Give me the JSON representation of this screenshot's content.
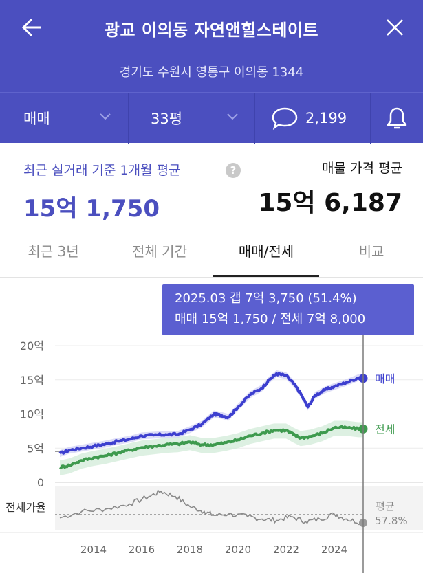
{
  "header": {
    "title": "광교 이의동 자연앤힐스테이트",
    "address": "경기도 수원시 영통구 이의동 1344",
    "colors": {
      "background": "#4b4fbf",
      "divider": "#3f43ad"
    }
  },
  "filters": {
    "deal_type": "매매",
    "size": "33평",
    "comment_count": "2,199",
    "icons": [
      "back-arrow-icon",
      "close-icon",
      "chevron-down-icon",
      "chat-bubble-icon",
      "bell-icon"
    ]
  },
  "summary": {
    "recent_label": "최근 실거래 기준 1개월 평균",
    "recent_value": "15억 1,750",
    "listing_label": "매물 가격 평균",
    "listing_value": "15억 6,187",
    "help": "?"
  },
  "tabs": [
    {
      "label": "최근 3년"
    },
    {
      "label": "전체 기간"
    },
    {
      "label": "매매/전세",
      "active": true
    },
    {
      "label": "비교"
    }
  ],
  "tooltip": {
    "line1": "2025.03  갭 7억 3,750 (51.4%)",
    "line2": "매매 15억 1,750 / 전세 7억 8,000"
  },
  "chart_data": [
    {
      "type": "line",
      "y_axis_ticks": [
        "20억",
        "15억",
        "10억",
        "5억",
        "0"
      ],
      "ylim": [
        0,
        20
      ],
      "y_unit": "억",
      "x_ticks": [
        "2014",
        "2016",
        "2018",
        "2020",
        "2022",
        "2024"
      ],
      "grid": true,
      "legend_placement": "right-end",
      "series": [
        {
          "name": "매매",
          "color": "#3d3fcf",
          "x": [
            2012.6,
            2013,
            2013.5,
            2014,
            2014.5,
            2015,
            2015.5,
            2016,
            2016.5,
            2017,
            2017.5,
            2018,
            2018.5,
            2019,
            2019.3,
            2019.6,
            2020,
            2020.5,
            2021,
            2021.3,
            2021.6,
            2022,
            2022.3,
            2022.6,
            2022.9,
            2023.2,
            2023.6,
            2024,
            2024.5,
            2025.0,
            2025.2
          ],
          "values": [
            4.2,
            4.7,
            5.0,
            5.3,
            5.6,
            6.0,
            6.3,
            6.8,
            6.9,
            7.0,
            7.0,
            7.7,
            8.5,
            10.0,
            9.8,
            9.5,
            11.0,
            12.8,
            13.8,
            15.0,
            15.9,
            15.6,
            14.5,
            13.0,
            11.0,
            12.7,
            13.5,
            14.0,
            14.6,
            15.3,
            15.2
          ]
        },
        {
          "name": "전세",
          "color": "#3e9a4e",
          "x": [
            2012.6,
            2013,
            2013.5,
            2014,
            2014.5,
            2015,
            2015.5,
            2016,
            2016.5,
            2017,
            2017.5,
            2018,
            2018.5,
            2019,
            2019.5,
            2020,
            2020.5,
            2021,
            2021.5,
            2022,
            2022.3,
            2022.6,
            2023,
            2023.5,
            2024,
            2024.5,
            2025.0,
            2025.2
          ],
          "values": [
            2.2,
            2.5,
            3.2,
            3.6,
            3.9,
            4.3,
            4.7,
            5.1,
            5.3,
            5.5,
            5.6,
            5.9,
            5.5,
            5.5,
            5.8,
            6.2,
            6.8,
            7.2,
            7.6,
            7.6,
            7.0,
            6.5,
            6.7,
            7.2,
            8.0,
            8.0,
            7.8,
            7.8
          ]
        }
      ]
    },
    {
      "type": "line",
      "ylabel": "전세가율",
      "average_label": "평균",
      "average_value": "57.8%",
      "series": [
        {
          "name": "전세가율",
          "color": "#8a8a8a",
          "x": [
            2012.6,
            2013.5,
            2014.5,
            2015.5,
            2016.3,
            2016.8,
            2017.4,
            2018,
            2018.6,
            2019,
            2019.6,
            2020.4,
            2021,
            2021.6,
            2022.2,
            2022.8,
            2023.4,
            2024,
            2024.5,
            2025.2
          ],
          "values": [
            55,
            60,
            62,
            66,
            72,
            76,
            72,
            64,
            60,
            57,
            58,
            56,
            54,
            53,
            56,
            52,
            54,
            58,
            54,
            51
          ]
        }
      ]
    }
  ]
}
